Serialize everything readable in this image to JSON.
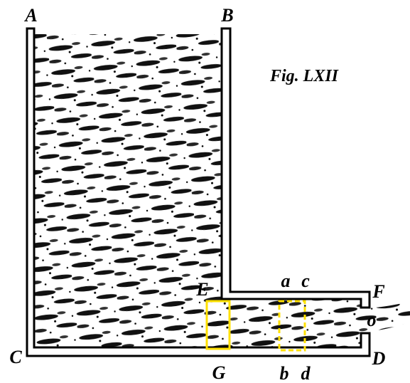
{
  "figure": {
    "title": "Fig. LXII",
    "labels": [
      "A",
      "B",
      "C",
      "D",
      "E",
      "F",
      "G",
      "a",
      "b",
      "c",
      "d",
      "o"
    ]
  }
}
